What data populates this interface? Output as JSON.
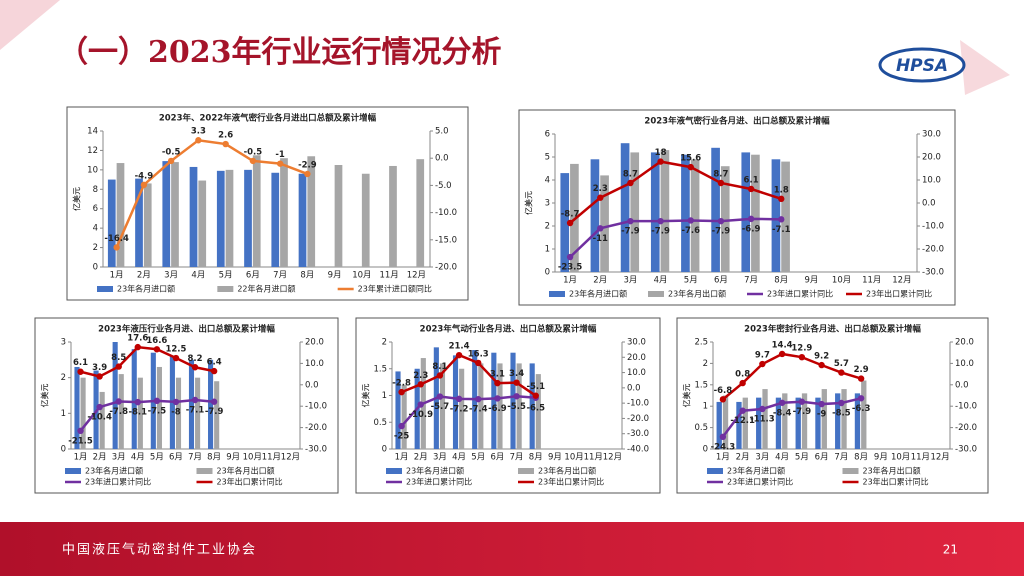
{
  "slide": {
    "title": "（一）2023年行业运行情况分析",
    "logo": "HPSA",
    "footer": "中国液压气动密封件工业协会",
    "page": "21"
  },
  "chart_data": [
    {
      "type": "combo",
      "title": "2023年、2022年液气密行业各月进出口总额及累计增幅",
      "y_label": "亿美元",
      "categories": [
        "1月",
        "2月",
        "3月",
        "4月",
        "5月",
        "6月",
        "7月",
        "8月",
        "9月",
        "10月",
        "11月",
        "12月"
      ],
      "ylim": [
        0,
        14
      ],
      "yticks": [
        0,
        2,
        4,
        6,
        8,
        10,
        12,
        14
      ],
      "y2lim": [
        -20,
        5
      ],
      "y2ticks": [
        {
          "value": 5,
          "label": "5.0"
        },
        {
          "value": 0,
          "label": "0.0"
        },
        {
          "value": -5,
          "label": "-5.0"
        },
        {
          "value": -10,
          "label": "-10.0"
        },
        {
          "value": -15,
          "label": "-15.0"
        },
        {
          "value": -20,
          "label": "-20.0"
        }
      ],
      "series": [
        {
          "name": "23年各月进口额",
          "type": "bar",
          "color": "#4472c4",
          "values": [
            9.0,
            9.1,
            10.9,
            10.3,
            9.9,
            10.0,
            9.7,
            9.6,
            null,
            null,
            null,
            null
          ]
        },
        {
          "name": "22年各月进口额",
          "type": "bar",
          "color": "#a6a6a6",
          "values": [
            10.7,
            8.6,
            10.8,
            8.9,
            10.0,
            11.5,
            11.2,
            11.4,
            10.5,
            9.6,
            10.4,
            11.1
          ]
        },
        {
          "name": "23年累计进口额同比",
          "type": "line",
          "axis": "y2",
          "color": "#ed7d31",
          "values": [
            -16.4,
            -4.9,
            -0.5,
            3.3,
            2.6,
            -0.5,
            -1.0,
            -2.9,
            null,
            null,
            null,
            null
          ]
        }
      ]
    },
    {
      "type": "combo",
      "title": "2023年液气密行业各月进、出口总额及累计增幅",
      "y_label": "亿美元",
      "categories": [
        "1月",
        "2月",
        "3月",
        "4月",
        "5月",
        "6月",
        "7月",
        "8月",
        "9月",
        "10月",
        "11月",
        "12月"
      ],
      "ylim": [
        0,
        6
      ],
      "yticks": [
        0,
        1,
        2,
        3,
        4,
        5,
        6
      ],
      "y2lim": [
        -30,
        30
      ],
      "y2ticks": [
        {
          "value": 30,
          "label": "30.0"
        },
        {
          "value": 20,
          "label": "20.0"
        },
        {
          "value": 10,
          "label": "10.0"
        },
        {
          "value": 0,
          "label": "0.0"
        },
        {
          "value": -10,
          "label": "-10.0"
        },
        {
          "value": -20,
          "label": "-20.0"
        },
        {
          "value": -30,
          "label": "-30.0"
        }
      ],
      "series": [
        {
          "name": "23年各月进口额",
          "type": "bar",
          "color": "#4472c4",
          "values": [
            4.3,
            4.9,
            5.6,
            5.2,
            5.1,
            5.4,
            5.2,
            4.9,
            null,
            null,
            null,
            null
          ]
        },
        {
          "name": "23年各月出口额",
          "type": "bar",
          "color": "#a6a6a6",
          "values": [
            4.7,
            4.2,
            5.2,
            5.3,
            4.9,
            4.6,
            5.1,
            4.8,
            null,
            null,
            null,
            null
          ]
        },
        {
          "name": "23年进口累计同比",
          "type": "line",
          "axis": "y2",
          "color": "#7030a0",
          "values": [
            -23.5,
            -11.0,
            -7.9,
            -7.9,
            -7.6,
            -7.9,
            -6.9,
            -7.1,
            null,
            null,
            null,
            null
          ]
        },
        {
          "name": "23年出口累计同比",
          "type": "line",
          "axis": "y2",
          "color": "#c00000",
          "values": [
            -8.7,
            2.3,
            8.7,
            18.0,
            15.6,
            8.7,
            6.1,
            1.8,
            null,
            null,
            null,
            null
          ]
        }
      ]
    },
    {
      "type": "combo",
      "title": "2023年液压行业各月进、出口总额及累计增幅",
      "y_label": "亿美元",
      "categories": [
        "1月",
        "2月",
        "3月",
        "4月",
        "5月",
        "6月",
        "7月",
        "8月",
        "9月",
        "10月",
        "11月",
        "12月"
      ],
      "ylim": [
        0,
        3
      ],
      "yticks": [
        0,
        1,
        2,
        3
      ],
      "y2lim": [
        -30,
        20
      ],
      "y2ticks": [
        {
          "value": 20,
          "label": "20.0"
        },
        {
          "value": 10,
          "label": "10.0"
        },
        {
          "value": 0,
          "label": "0.0"
        },
        {
          "value": -10,
          "label": "-10.0"
        },
        {
          "value": -20,
          "label": "-20.0"
        },
        {
          "value": -30,
          "label": "-30.0"
        }
      ],
      "series": [
        {
          "name": "23年各月进口额",
          "type": "bar",
          "color": "#4472c4",
          "values": [
            2.3,
            2.2,
            3.0,
            2.8,
            2.7,
            2.6,
            2.5,
            2.5,
            null,
            null,
            null,
            null
          ]
        },
        {
          "name": "23年各月出口额",
          "type": "bar",
          "color": "#a6a6a6",
          "values": [
            2.0,
            1.6,
            2.1,
            2.0,
            2.3,
            2.0,
            2.0,
            1.9,
            null,
            null,
            null,
            null
          ]
        },
        {
          "name": "23年进口累计同比",
          "type": "line",
          "axis": "y2",
          "color": "#7030a0",
          "values": [
            -21.5,
            -10.4,
            -7.8,
            -8.1,
            -7.5,
            -8.0,
            -7.1,
            -7.9,
            null,
            null,
            null,
            null
          ]
        },
        {
          "name": "23年出口累计同比",
          "type": "line",
          "axis": "y2",
          "color": "#c00000",
          "values": [
            6.1,
            3.9,
            8.5,
            17.6,
            16.6,
            12.5,
            8.2,
            6.4,
            null,
            null,
            null,
            null
          ]
        }
      ]
    },
    {
      "type": "combo",
      "title": "2023年气动行业各月进、出口总额及累计增幅",
      "y_label": "亿美元",
      "categories": [
        "1月",
        "2月",
        "3月",
        "4月",
        "5月",
        "6月",
        "7月",
        "8月",
        "9月",
        "10月",
        "11月",
        "12月"
      ],
      "ylim": [
        0,
        2
      ],
      "yticks": [
        0,
        0.5,
        1,
        1.5,
        2
      ],
      "y2lim": [
        -40,
        30
      ],
      "y2ticks": [
        {
          "value": 30,
          "label": "30.0"
        },
        {
          "value": 20,
          "label": "20.0"
        },
        {
          "value": 10,
          "label": "10.0"
        },
        {
          "value": 0,
          "label": "0.0"
        },
        {
          "value": -10,
          "label": "-10.0"
        },
        {
          "value": -20,
          "label": "-20.0"
        },
        {
          "value": -30,
          "label": "-30.0"
        },
        {
          "value": -40,
          "label": "-40.0"
        }
      ],
      "series": [
        {
          "name": "23年各月进口额",
          "type": "bar",
          "color": "#4472c4",
          "values": [
            1.45,
            1.5,
            1.9,
            1.75,
            1.85,
            1.8,
            1.8,
            1.6,
            null,
            null,
            null,
            null
          ]
        },
        {
          "name": "23年各月出口额",
          "type": "bar",
          "color": "#a6a6a6",
          "values": [
            1.2,
            1.7,
            1.6,
            1.5,
            1.6,
            1.6,
            1.6,
            1.4,
            null,
            null,
            null,
            null
          ]
        },
        {
          "name": "23年进口累计同比",
          "type": "line",
          "axis": "y2",
          "color": "#7030a0",
          "values": [
            -25.0,
            -10.9,
            -5.7,
            -7.2,
            -7.4,
            -6.9,
            -5.5,
            -6.5,
            null,
            null,
            null,
            null
          ]
        },
        {
          "name": "23年出口累计同比",
          "type": "line",
          "axis": "y2",
          "color": "#c00000",
          "values": [
            -2.8,
            2.3,
            8.1,
            21.4,
            16.3,
            3.1,
            3.4,
            -5.1,
            null,
            null,
            null,
            null
          ]
        }
      ]
    },
    {
      "type": "combo",
      "title": "2023年密封行业各月进、出口总额及累计增幅",
      "y_label": "亿美元",
      "categories": [
        "1月",
        "2月",
        "3月",
        "4月",
        "5月",
        "6月",
        "7月",
        "8月",
        "9月",
        "10月",
        "11月",
        "12月"
      ],
      "ylim": [
        0,
        2.5
      ],
      "yticks": [
        0,
        0.5,
        1,
        1.5,
        2,
        2.5
      ],
      "y2lim": [
        -30,
        20
      ],
      "y2ticks": [
        {
          "value": 20,
          "label": "20.0"
        },
        {
          "value": 10,
          "label": "10.0"
        },
        {
          "value": 0,
          "label": "0.0"
        },
        {
          "value": -10,
          "label": "-10.0"
        },
        {
          "value": -20,
          "label": "-20.0"
        },
        {
          "value": -30,
          "label": "-30.0"
        }
      ],
      "series": [
        {
          "name": "23年各月进口额",
          "type": "bar",
          "color": "#4472c4",
          "values": [
            1.1,
            1.1,
            1.2,
            1.2,
            1.2,
            1.2,
            1.3,
            1.3,
            null,
            null,
            null,
            null
          ]
        },
        {
          "name": "23年各月出口额",
          "type": "bar",
          "color": "#a6a6a6",
          "values": [
            1.25,
            1.2,
            1.4,
            1.3,
            1.3,
            1.4,
            1.4,
            1.6,
            null,
            null,
            null,
            null
          ]
        },
        {
          "name": "23年进口累计同比",
          "type": "line",
          "axis": "y2",
          "color": "#7030a0",
          "values": [
            -24.3,
            -12.1,
            -11.3,
            -8.4,
            -7.9,
            -9.0,
            -8.5,
            -6.3,
            null,
            null,
            null,
            null
          ]
        },
        {
          "name": "23年出口累计同比",
          "type": "line",
          "axis": "y2",
          "color": "#c00000",
          "values": [
            -6.8,
            0.8,
            9.7,
            14.4,
            12.9,
            9.2,
            5.7,
            2.9,
            null,
            null,
            null,
            null
          ]
        }
      ]
    }
  ]
}
